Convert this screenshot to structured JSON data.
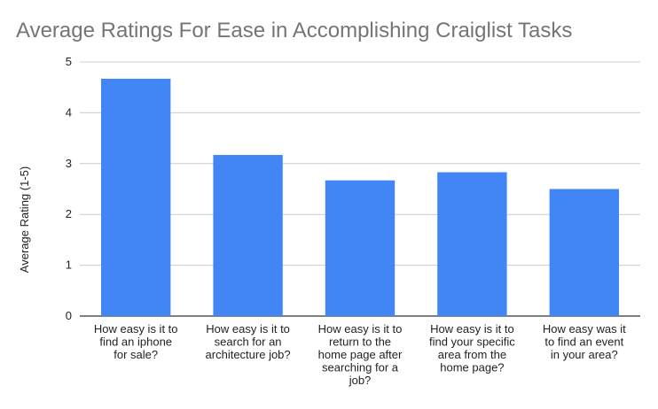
{
  "chart_data": {
    "type": "bar",
    "title": "Average Ratings For Ease in Accomplishing Craiglist Tasks",
    "xlabel": "",
    "ylabel": "Average Rating (1-5)",
    "ylim": [
      0,
      5
    ],
    "yticks": [
      "0",
      "1",
      "2",
      "3",
      "4",
      "5"
    ],
    "grid": true,
    "legend": "none",
    "bar_color": "#4285f4",
    "categories": [
      [
        "How easy is it to",
        "find an iphone",
        "for sale?"
      ],
      [
        "How easy is it to",
        "search for an",
        "architecture job?"
      ],
      [
        "How easy is it to",
        "return to the",
        "home page after",
        "searching for a",
        "job?"
      ],
      [
        "How easy is it to",
        "find your specific",
        "area from the",
        "home page?"
      ],
      [
        "How easy was it",
        "to find an event",
        "in your area?"
      ]
    ],
    "values": [
      4.67,
      3.17,
      2.67,
      2.83,
      2.5
    ]
  }
}
